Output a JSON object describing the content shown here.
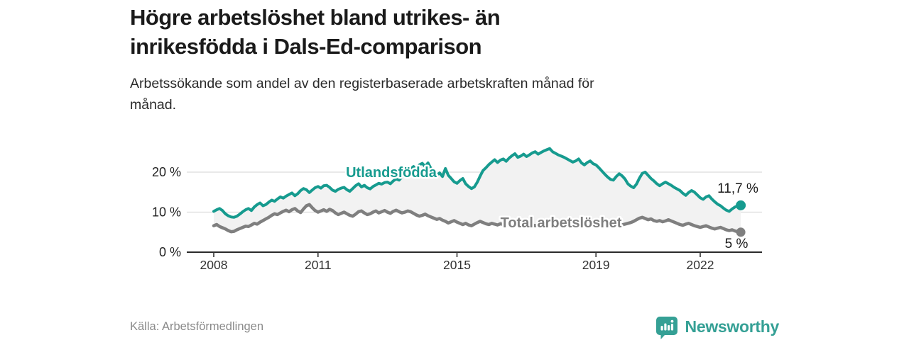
{
  "header": {
    "title_lines": [
      "Högre arbetslöshet bland utrikes- än",
      "inrikesfödda i Dals-Ed-comparison"
    ],
    "subtitle_lines": [
      "Arbetssökande som andel av den registerbaserade arbetskraften månad för",
      "månad."
    ]
  },
  "footer": {
    "source": "Källa: Arbetsförmedlingen",
    "brand": "Newsworthy",
    "brand_icon": "newsworthy-speech-bubble-bar-chart-icon"
  },
  "colors": {
    "teal": "#169b8f",
    "gray": "#7f7f7f",
    "band_fill": "#f2f2f2",
    "grid": "#dcdcdc",
    "axis": "#2b2b2b",
    "label_dark": "#1a1a1a",
    "source_muted": "#8a8a8a",
    "brand_teal": "#35a095"
  },
  "chart_data": {
    "type": "line",
    "x_start_year": 2008,
    "x_step_months": 1,
    "x_ticks": [
      2008,
      2011,
      2015,
      2019,
      2022
    ],
    "x_tick_labels": [
      "2008",
      "2011",
      "2015",
      "2019",
      "2022"
    ],
    "y_ticks": [
      0,
      10,
      20
    ],
    "y_tick_labels": [
      "0 %",
      "10 %",
      "20 %"
    ],
    "ylim": [
      0,
      27
    ],
    "grid": true,
    "band_fill_between_series": true,
    "series": [
      {
        "name": "Utlandsfödda",
        "color": "#169b8f",
        "end_label": "11,7 %",
        "end_value": 11.7,
        "values": [
          10.2,
          10.6,
          10.9,
          10.4,
          9.6,
          9.1,
          8.8,
          8.7,
          9.0,
          9.5,
          10.1,
          10.6,
          10.9,
          10.4,
          11.3,
          11.9,
          12.3,
          11.6,
          11.9,
          12.5,
          13.0,
          12.7,
          13.3,
          13.8,
          13.5,
          14.0,
          14.4,
          14.8,
          14.1,
          14.6,
          15.4,
          15.9,
          15.6,
          14.9,
          15.5,
          16.1,
          16.4,
          16.0,
          16.6,
          16.7,
          16.2,
          15.5,
          15.2,
          15.7,
          16.0,
          16.2,
          15.6,
          15.2,
          15.9,
          16.6,
          17.1,
          16.3,
          16.7,
          16.1,
          15.8,
          16.4,
          16.8,
          17.2,
          17.0,
          17.4,
          17.5,
          17.1,
          17.8,
          18.3,
          18.0,
          18.8,
          19.4,
          20.0,
          20.8,
          21.4,
          20.6,
          21.8,
          22.2,
          21.4,
          22.3,
          20.9,
          19.7,
          19.2,
          19.8,
          18.9,
          20.9,
          19.2,
          18.4,
          17.6,
          17.2,
          17.9,
          18.4,
          17.1,
          16.4,
          15.9,
          16.3,
          17.5,
          19.0,
          20.4,
          21.1,
          21.9,
          22.5,
          23.1,
          22.4,
          23.0,
          23.3,
          22.7,
          23.5,
          24.1,
          24.6,
          23.7,
          24.0,
          24.5,
          23.9,
          24.3,
          24.8,
          25.1,
          24.5,
          24.9,
          25.3,
          25.6,
          25.9,
          25.1,
          24.7,
          24.3,
          24.0,
          23.7,
          23.3,
          22.9,
          22.5,
          22.8,
          23.3,
          22.3,
          21.8,
          22.4,
          22.8,
          22.1,
          21.8,
          21.1,
          20.3,
          19.5,
          18.8,
          18.2,
          18.0,
          18.9,
          19.6,
          19.1,
          18.3,
          17.1,
          16.5,
          16.1,
          17.0,
          18.5,
          19.7,
          20.0,
          19.2,
          18.4,
          17.8,
          17.1,
          16.6,
          17.1,
          17.5,
          17.1,
          16.7,
          16.2,
          15.8,
          15.4,
          14.7,
          14.2,
          14.9,
          15.4,
          15.0,
          14.3,
          13.6,
          13.2,
          13.8,
          14.1,
          13.3,
          12.6,
          12.0,
          11.6,
          11.0,
          10.5,
          10.2,
          10.8,
          11.3,
          11.6,
          11.7
        ]
      },
      {
        "name": "Total arbetslöshet",
        "color": "#7f7f7f",
        "end_label": "5 %",
        "end_value": 5.0,
        "values": [
          6.6,
          6.9,
          6.4,
          6.1,
          5.8,
          5.4,
          5.1,
          5.2,
          5.6,
          5.9,
          6.2,
          6.5,
          6.4,
          6.8,
          7.2,
          7.0,
          7.5,
          7.9,
          8.3,
          8.7,
          9.2,
          9.6,
          9.4,
          9.8,
          10.2,
          10.5,
          10.1,
          10.6,
          10.9,
          10.3,
          9.9,
          10.8,
          11.6,
          11.9,
          11.1,
          10.4,
          10.0,
          10.3,
          10.6,
          10.2,
          10.7,
          10.4,
          9.8,
          9.4,
          9.7,
          10.0,
          9.6,
          9.2,
          9.0,
          9.5,
          10.1,
          10.3,
          9.8,
          9.4,
          9.6,
          10.0,
          10.3,
          9.8,
          10.1,
          10.4,
          10.0,
          9.7,
          10.2,
          10.5,
          10.1,
          9.8,
          10.0,
          10.3,
          10.1,
          9.7,
          9.3,
          9.0,
          9.2,
          9.5,
          9.1,
          8.8,
          8.5,
          8.2,
          8.4,
          8.0,
          7.7,
          7.3,
          7.6,
          7.9,
          7.5,
          7.2,
          6.9,
          7.2,
          6.8,
          6.6,
          7.0,
          7.4,
          7.7,
          7.4,
          7.1,
          6.9,
          7.2,
          7.0,
          6.8,
          7.1,
          6.9,
          6.7,
          7.0,
          7.2,
          6.9,
          6.7,
          6.6,
          6.8,
          6.9,
          7.1,
          6.8,
          6.6,
          6.8,
          7.0,
          6.7,
          6.9,
          7.1,
          6.8,
          6.6,
          6.7,
          6.9,
          7.0,
          6.8,
          6.6,
          6.7,
          6.9,
          6.6,
          6.4,
          6.6,
          6.8,
          6.7,
          6.9,
          6.8,
          7.0,
          7.2,
          6.9,
          6.7,
          6.9,
          7.1,
          6.8,
          6.6,
          6.8,
          7.0,
          7.2,
          7.4,
          7.7,
          8.1,
          8.5,
          8.7,
          8.4,
          8.1,
          8.3,
          7.9,
          7.7,
          7.9,
          7.6,
          7.8,
          8.1,
          7.8,
          7.5,
          7.2,
          6.9,
          6.7,
          7.0,
          7.2,
          6.9,
          6.6,
          6.4,
          6.2,
          6.4,
          6.6,
          6.3,
          6.0,
          5.8,
          6.0,
          6.2,
          5.9,
          5.6,
          5.4,
          5.6,
          5.3,
          5.1,
          5.0
        ]
      }
    ]
  }
}
